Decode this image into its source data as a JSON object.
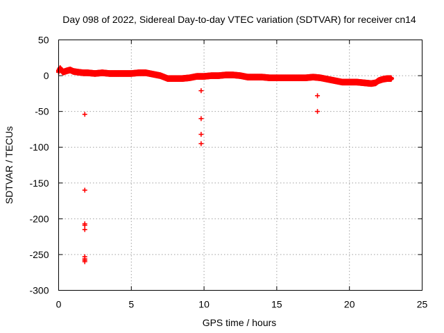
{
  "chart_data": {
    "type": "scatter",
    "title": "Day 098 of 2022, Sidereal Day-to-day VTEC variation (SDTVAR) for receiver cn14",
    "xlabel": "GPS time / hours",
    "ylabel": "SDTVAR / TECUs",
    "xlim": [
      0,
      25
    ],
    "ylim": [
      -300,
      50
    ],
    "xticks": [
      0,
      5,
      10,
      15,
      20,
      25
    ],
    "yticks": [
      50,
      0,
      -50,
      -100,
      -150,
      -200,
      -250,
      -300
    ],
    "xtick_labels": [
      "0",
      "5",
      "10",
      "15",
      "20",
      "25"
    ],
    "ytick_labels": [
      "50",
      "0",
      "-50",
      "-100",
      "-150",
      "-200",
      "-250",
      "-300"
    ],
    "grid": true,
    "marker": "+",
    "color": "#ff0000",
    "series": [
      {
        "name": "SDTVAR",
        "trend": [
          [
            0.0,
            6
          ],
          [
            0.1,
            10
          ],
          [
            0.3,
            5
          ],
          [
            0.6,
            7
          ],
          [
            0.8,
            8
          ],
          [
            1.0,
            6
          ],
          [
            1.3,
            5
          ],
          [
            1.7,
            4
          ],
          [
            2.0,
            4
          ],
          [
            2.5,
            3
          ],
          [
            3.0,
            4
          ],
          [
            3.5,
            3
          ],
          [
            4.0,
            3
          ],
          [
            4.5,
            3
          ],
          [
            5.0,
            3
          ],
          [
            5.5,
            4
          ],
          [
            6.0,
            4
          ],
          [
            6.5,
            2
          ],
          [
            7.0,
            0
          ],
          [
            7.5,
            -4
          ],
          [
            8.0,
            -4
          ],
          [
            8.5,
            -4
          ],
          [
            9.0,
            -3
          ],
          [
            9.5,
            -1
          ],
          [
            10.0,
            -1
          ],
          [
            10.5,
            0
          ],
          [
            11.0,
            0
          ],
          [
            11.5,
            1
          ],
          [
            12.0,
            1
          ],
          [
            12.5,
            0
          ],
          [
            13.0,
            -2
          ],
          [
            13.5,
            -2
          ],
          [
            14.0,
            -2
          ],
          [
            14.5,
            -3
          ],
          [
            15.0,
            -3
          ],
          [
            15.5,
            -3
          ],
          [
            16.0,
            -3
          ],
          [
            16.5,
            -3
          ],
          [
            17.0,
            -3
          ],
          [
            17.5,
            -2
          ],
          [
            18.0,
            -3
          ],
          [
            18.5,
            -5
          ],
          [
            19.0,
            -7
          ],
          [
            19.5,
            -9
          ],
          [
            20.0,
            -9
          ],
          [
            20.5,
            -9
          ],
          [
            21.0,
            -10
          ],
          [
            21.5,
            -11
          ],
          [
            21.8,
            -10
          ],
          [
            22.0,
            -7
          ],
          [
            22.3,
            -5
          ],
          [
            22.6,
            -4
          ],
          [
            22.9,
            -4
          ]
        ],
        "outliers": [
          [
            1.8,
            -54
          ],
          [
            1.8,
            -160
          ],
          [
            1.8,
            -207
          ],
          [
            1.8,
            -209
          ],
          [
            1.8,
            -215
          ],
          [
            1.8,
            -253
          ],
          [
            1.8,
            -256
          ],
          [
            1.8,
            -258
          ],
          [
            1.8,
            -260
          ],
          [
            9.8,
            -21
          ],
          [
            9.8,
            -60
          ],
          [
            9.8,
            -82
          ],
          [
            9.8,
            -95
          ],
          [
            17.8,
            -28
          ],
          [
            17.8,
            -50
          ]
        ]
      }
    ]
  }
}
